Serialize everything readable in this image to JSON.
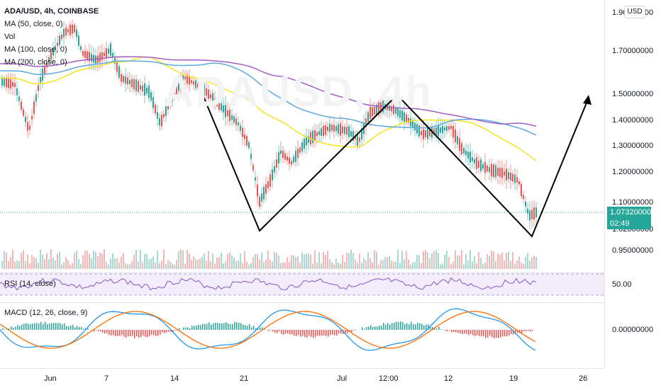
{
  "legend": {
    "symbol": "ADA/USD, 4h, COINBASE",
    "ma50": "MA (50, close, 0)",
    "vol": "Vol",
    "ma100": "MA (100, close, 0)",
    "ma200": "MA (200, close, 0)"
  },
  "currency_badge": "USD",
  "price_scale": [
    "1.90000000",
    "1.70000000",
    "1.50000000",
    "1.40000000",
    "1.30000000",
    "1.20000000",
    "1.10000000",
    "1.02000000",
    "0.95000000"
  ],
  "current_price": "1.07320000",
  "countdown": "02:49",
  "rsi": {
    "label": "RSI (14, close)",
    "level": "50.00"
  },
  "macd": {
    "label": "MACD (12, 26, close, 9)",
    "level": "0.00000000"
  },
  "time_axis": [
    "Jun",
    "7",
    "14",
    "21",
    "Jul",
    "12:00",
    "12",
    "19",
    "26"
  ],
  "colors": {
    "up": "#26a69a",
    "down": "#ef5350",
    "ma50": "#f5e31d",
    "ma100": "#5ea8e0",
    "ma200": "#a25ec5",
    "rsi": "#7e57c2",
    "macd": "#2196f3",
    "signal": "#ff6d00",
    "pattern": "#000000"
  }
}
